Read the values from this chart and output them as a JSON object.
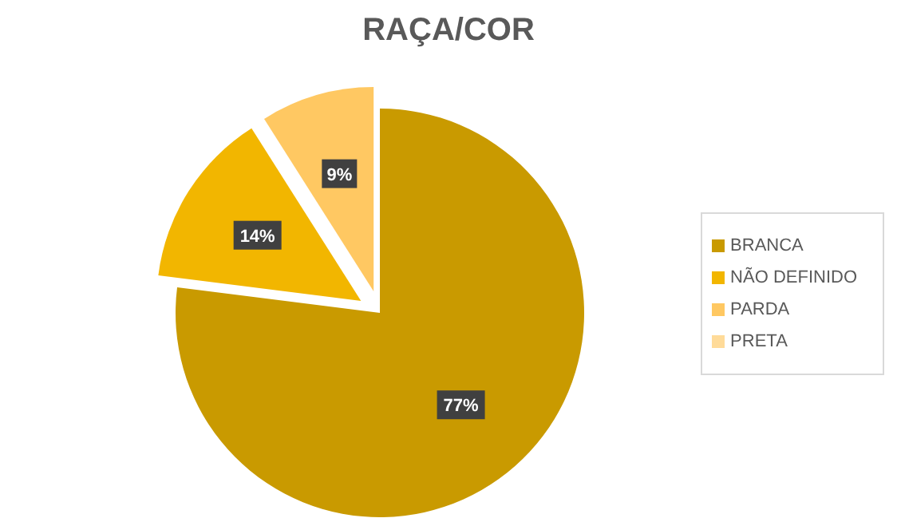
{
  "chart_data": {
    "type": "pie",
    "title": "RAÇA/COR",
    "categories": [
      "BRANCA",
      "NÃO DEFINIDO",
      "PARDA",
      "PRETA"
    ],
    "values": [
      77,
      14,
      9,
      0
    ],
    "colors": [
      "#c99a00",
      "#f2b600",
      "#ffc862",
      "#ffdb99"
    ],
    "value_labels": [
      "77%",
      "14%",
      "9%",
      null
    ],
    "legend": "right"
  }
}
